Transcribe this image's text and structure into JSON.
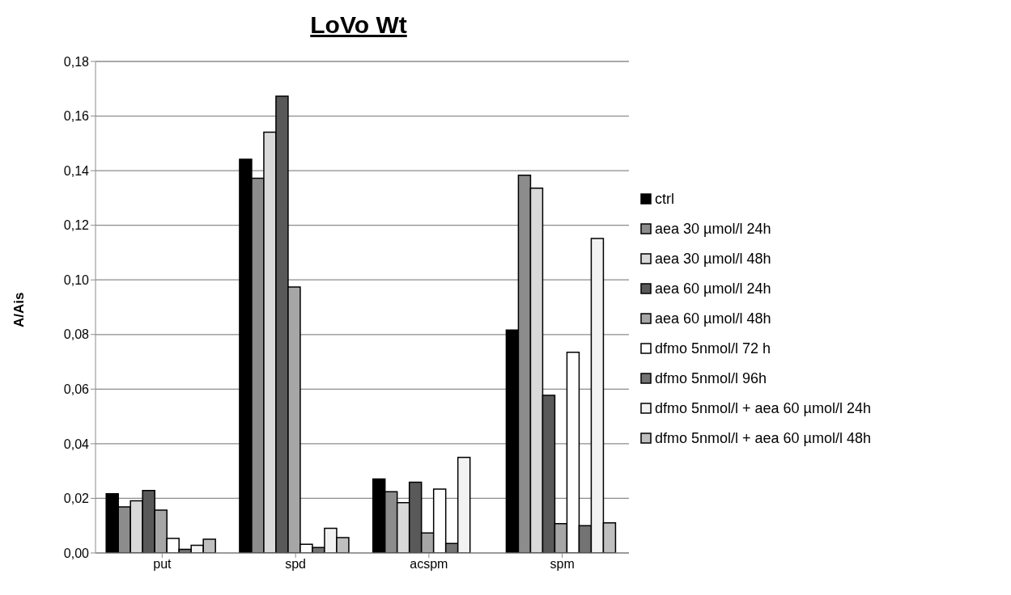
{
  "chart_data": {
    "type": "bar",
    "title": "LoVo Wt",
    "ylabel": "A/Ais",
    "categories": [
      "put",
      "spd",
      "acspm",
      "spm"
    ],
    "series": [
      {
        "name": "ctrl",
        "color": "#000000",
        "values": [
          0.0217,
          0.1442,
          0.0271,
          0.0816
        ]
      },
      {
        "name": "aea 30 µmol/l 24h",
        "color": "#8c8c8c",
        "values": [
          0.0169,
          0.1372,
          0.0224,
          0.1383
        ]
      },
      {
        "name": "aea 30 µmol/l 48h",
        "color": "#d9d9d9",
        "values": [
          0.0191,
          0.1541,
          0.0184,
          0.1336
        ]
      },
      {
        "name": "aea 60 µmol/l 24h",
        "color": "#595959",
        "values": [
          0.0229,
          0.1673,
          0.0259,
          0.0577
        ]
      },
      {
        "name": "aea 60 µmol/l 48h",
        "color": "#a6a6a6",
        "values": [
          0.0157,
          0.0974,
          0.0073,
          0.0107
        ]
      },
      {
        "name": "dfmo 5nmol/l 72 h",
        "color": "#ffffff",
        "values": [
          0.0053,
          0.0032,
          0.0234,
          0.0735
        ]
      },
      {
        "name": "dfmo 5nmol/l 96h",
        "color": "#737373",
        "values": [
          0.0013,
          0.002,
          0.0035,
          0.01
        ]
      },
      {
        "name": "dfmo 5nmol/l + aea 60 µmol/l 24h",
        "color": "#f2f2f2",
        "values": [
          0.0028,
          0.009,
          0.035,
          0.1152
        ]
      },
      {
        "name": "dfmo 5nmol/l + aea 60 µmol/l 48h",
        "color": "#bfbfbf",
        "values": [
          0.005,
          0.0056,
          0,
          0.011
        ]
      }
    ],
    "ylim": [
      0,
      0.18
    ],
    "yticks": [
      {
        "value": 0,
        "label": "0,00"
      },
      {
        "value": 0.02,
        "label": "0,02"
      },
      {
        "value": 0.04,
        "label": "0,04"
      },
      {
        "value": 0.06,
        "label": "0,06"
      },
      {
        "value": 0.08,
        "label": "0,08"
      },
      {
        "value": 0.1,
        "label": "0,10"
      },
      {
        "value": 0.12,
        "label": "0,12"
      },
      {
        "value": 0.14,
        "label": "0,14"
      },
      {
        "value": 0.16,
        "label": "0,16"
      },
      {
        "value": 0.18,
        "label": "0,18"
      }
    ],
    "grid": "y",
    "legend": "right"
  }
}
